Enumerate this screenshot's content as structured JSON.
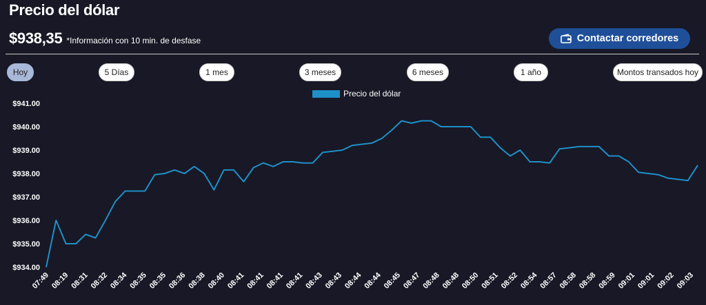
{
  "header": {
    "title": "Precio del dólar",
    "price": "$938,35",
    "delay_note": "*Información con 10 min. de desfase",
    "contact_label": "Contactar corredores"
  },
  "ranges": [
    {
      "label": "Hoy",
      "active": true
    },
    {
      "label": "5 Días",
      "active": false
    },
    {
      "label": "1 mes",
      "active": false
    },
    {
      "label": "3 meses",
      "active": false
    },
    {
      "label": "6 meses",
      "active": false
    },
    {
      "label": "1 año",
      "active": false
    },
    {
      "label": "Montos transados hoy",
      "active": false
    }
  ],
  "colors": {
    "line": "#1e90c8",
    "accent": "#1f4f99"
  },
  "chart_data": {
    "type": "line",
    "title": "",
    "xlabel": "",
    "ylabel": "",
    "legend_position": "top-center",
    "grid": false,
    "ylim": [
      934.0,
      941.0
    ],
    "yticks": [
      "$941.00",
      "$940.00",
      "$939.00",
      "$938.00",
      "$937.00",
      "$936.00",
      "$935.00",
      "$934.00"
    ],
    "xtick_labels": [
      "07:49",
      "08:19",
      "08:31",
      "08:32",
      "08:34",
      "08:35",
      "08:35",
      "08:36",
      "08:38",
      "08:40",
      "08:41",
      "08:41",
      "08:41",
      "08:41",
      "08:43",
      "08:43",
      "08:44",
      "08:44",
      "08:45",
      "08:47",
      "08:48",
      "08:48",
      "08:50",
      "08:51",
      "08:52",
      "08:54",
      "08:57",
      "08:58",
      "08:58",
      "08:59",
      "09:01",
      "09:01",
      "09:02",
      "09:03"
    ],
    "series": [
      {
        "name": "Precio del dólar",
        "values": [
          934.0,
          936.0,
          935.0,
          935.0,
          935.4,
          935.25,
          936.0,
          936.8,
          937.25,
          937.25,
          937.25,
          937.95,
          938.0,
          938.15,
          938.0,
          938.3,
          938.0,
          937.3,
          938.15,
          938.15,
          937.65,
          938.25,
          938.45,
          938.3,
          938.5,
          938.5,
          938.45,
          938.45,
          938.9,
          938.95,
          939.0,
          939.2,
          939.25,
          939.3,
          939.5,
          939.85,
          940.25,
          940.15,
          940.25,
          940.25,
          940.0,
          940.0,
          940.0,
          940.0,
          939.55,
          939.55,
          939.1,
          938.75,
          939.0,
          938.5,
          938.5,
          938.45,
          939.05,
          939.1,
          939.15,
          939.15,
          939.15,
          938.75,
          938.75,
          938.5,
          938.05,
          938.0,
          937.95,
          937.8,
          937.75,
          937.7,
          938.35
        ]
      }
    ]
  }
}
